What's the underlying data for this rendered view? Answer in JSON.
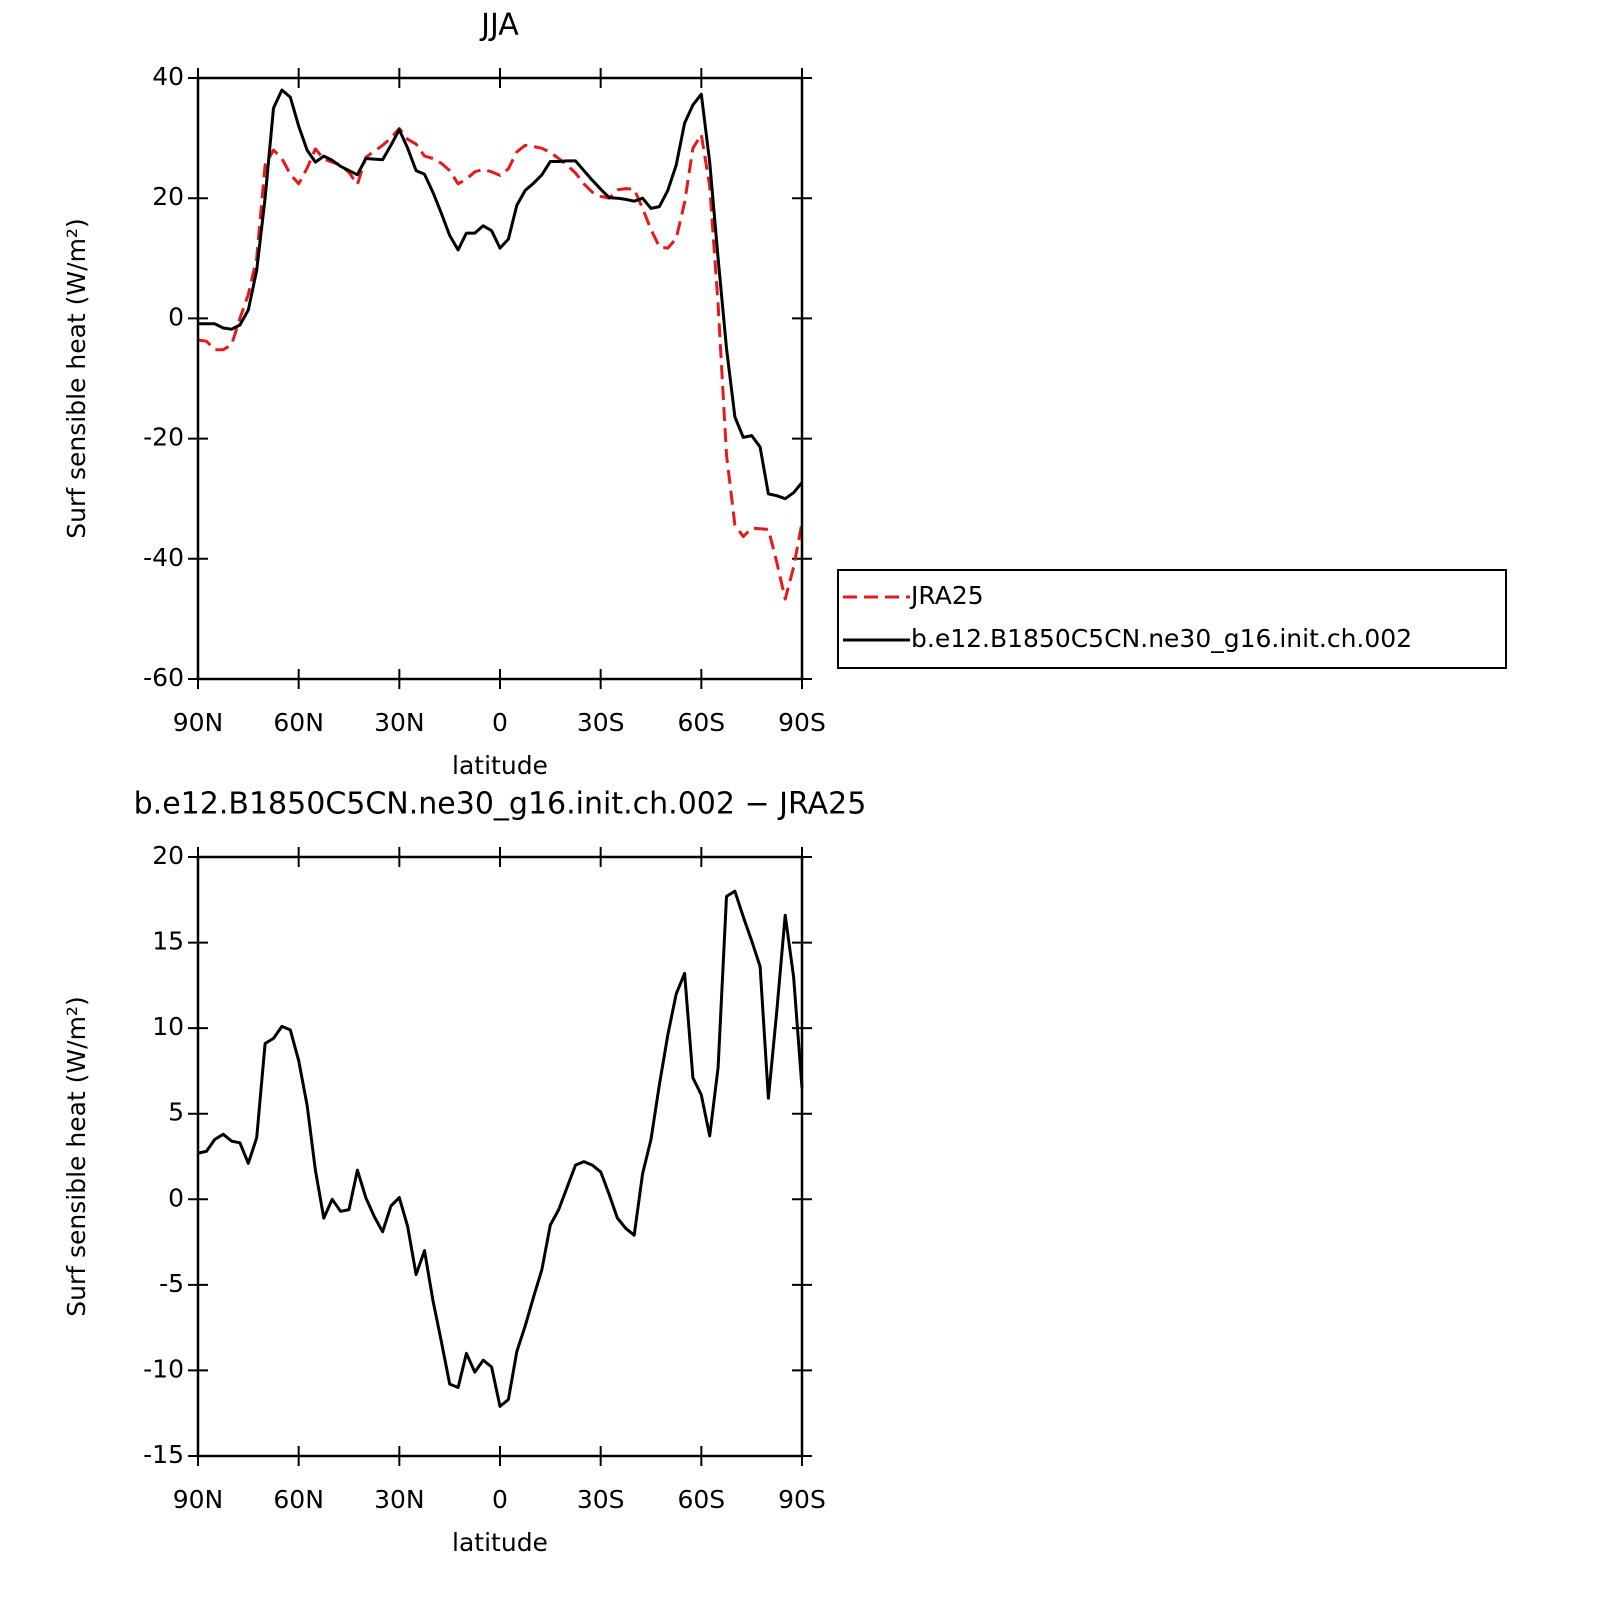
{
  "chart_data": [
    {
      "type": "line",
      "title": "JJA",
      "xlabel": "latitude",
      "ylabel": "Surf sensible heat (W/m²)",
      "x": [
        90,
        87.5,
        85,
        82.5,
        80,
        77.5,
        75,
        72.5,
        70,
        67.5,
        65,
        62.5,
        60,
        57.5,
        55,
        52.5,
        50,
        47.5,
        45,
        42.5,
        40,
        37.5,
        35,
        32.5,
        30,
        27.5,
        25,
        22.5,
        20,
        17.5,
        15,
        12.5,
        10,
        7.5,
        5,
        2.5,
        0,
        -2.5,
        -5,
        -7.5,
        -10,
        -12.5,
        -15,
        -17.5,
        -20,
        -22.5,
        -25,
        -27.5,
        -30,
        -32.5,
        -35,
        -37.5,
        -40,
        -42.5,
        -45,
        -47.5,
        -50,
        -52.5,
        -55,
        -57.5,
        -60,
        -62.5,
        -65,
        -67.5,
        -70,
        -72.5,
        -75,
        -77.5,
        -80,
        -82.5,
        -85,
        -87.5,
        -90
      ],
      "series": [
        {
          "name": "JRA25",
          "color": "#e8191b",
          "linestyle": "dashed",
          "values": [
            -3.6,
            -3.8,
            -5.2,
            -5.2,
            -4.4,
            0,
            4,
            10,
            25.5,
            28,
            26.6,
            24,
            22.4,
            25,
            28.2,
            26.5,
            26,
            25.5,
            24.3,
            22.3,
            26.8,
            27.8,
            28.8,
            30,
            31.6,
            29.8,
            29,
            27,
            26.6,
            25.8,
            24.6,
            22.4,
            23.2,
            24.4,
            24.8,
            24.4,
            23.8,
            24.9,
            27.7,
            28.8,
            28.6,
            28.3,
            27.6,
            26.6,
            25.5,
            24.2,
            22.4,
            21,
            20.3,
            20,
            21.4,
            21.6,
            21.5,
            18.3,
            14.8,
            11.9,
            11.7,
            13.3,
            19.3,
            28.3,
            30.6,
            22,
            2.3,
            -22.7,
            -34.4,
            -36.3,
            -34.9,
            -35,
            -35.1,
            -40.6,
            -46.7,
            -41.4,
            -34
          ]
        },
        {
          "name": "b.e12.B1850C5CN.ne30_g16.init.ch.002",
          "color": "#000000",
          "linestyle": "solid",
          "values": [
            -0.9,
            -0.9,
            -0.9,
            -1.6,
            -1.8,
            -1.1,
            1.4,
            8,
            20,
            35,
            38,
            36.8,
            32,
            28,
            26,
            27,
            26.3,
            25.3,
            24.6,
            23.9,
            26.6,
            26.5,
            26.4,
            28.8,
            31.4,
            28.3,
            24.6,
            24,
            21,
            17.5,
            13.8,
            11.4,
            14.2,
            14.2,
            15.4,
            14.6,
            11.7,
            13.2,
            18.8,
            21.3,
            22.5,
            23.9,
            26.1,
            26.1,
            26.2,
            26.2,
            24.6,
            23,
            21.5,
            20.1,
            20,
            19.8,
            19.5,
            20,
            18.3,
            18.6,
            21.3,
            25.5,
            32.5,
            35.5,
            37.3,
            26,
            10,
            -5,
            -16.4,
            -19.8,
            -19.5,
            -21.4,
            -29.2,
            -29.5,
            -30,
            -29,
            -27.3
          ]
        }
      ],
      "xlim": [
        90,
        -90
      ],
      "xticks": [
        {
          "value": 90,
          "label": "90N"
        },
        {
          "value": 60,
          "label": "60N"
        },
        {
          "value": 30,
          "label": "30N"
        },
        0,
        {
          "value": -30,
          "label": "30S"
        },
        {
          "value": -60,
          "label": "60S"
        },
        {
          "value": -90,
          "label": "90S"
        }
      ],
      "ylim": [
        -60,
        40
      ],
      "yticks": [
        -60,
        -40,
        -20,
        0,
        20,
        40
      ],
      "legend": "right"
    },
    {
      "type": "line",
      "title": "b.e12.B1850C5CN.ne30_g16.init.ch.002 − JRA25",
      "xlabel": "latitude",
      "ylabel": "Surf sensible heat (W/m²)",
      "x": [
        90,
        87.5,
        85,
        82.5,
        80,
        77.5,
        75,
        72.5,
        70,
        67.5,
        65,
        62.5,
        60,
        57.5,
        55,
        52.5,
        50,
        47.5,
        45,
        42.5,
        40,
        37.5,
        35,
        32.5,
        30,
        27.5,
        25,
        22.5,
        20,
        17.5,
        15,
        12.5,
        10,
        7.5,
        5,
        2.5,
        0,
        -2.5,
        -5,
        -7.5,
        -10,
        -12.5,
        -15,
        -17.5,
        -20,
        -22.5,
        -25,
        -27.5,
        -30,
        -32.5,
        -35,
        -37.5,
        -40,
        -42.5,
        -45,
        -47.5,
        -50,
        -52.5,
        -55,
        -57.5,
        -60,
        -62.5,
        -65,
        -67.5,
        -70,
        -72.5,
        -75,
        -77.5,
        -80,
        -82.5,
        -85,
        -87.5,
        -90
      ],
      "values": [
        2.7,
        2.8,
        3.5,
        3.8,
        3.4,
        3.3,
        2.1,
        3.6,
        9.1,
        9.4,
        10.1,
        9.9,
        8.1,
        5.5,
        1.7,
        -1.1,
        0,
        -0.7,
        -0.6,
        1.7,
        0.1,
        -1,
        -1.9,
        -0.4,
        0.1,
        -1.6,
        -4.4,
        -3,
        -5.9,
        -8.3,
        -10.8,
        -11,
        -9,
        -10.1,
        -9.4,
        -9.8,
        -12.1,
        -11.7,
        -8.9,
        -7.4,
        -5.7,
        -4.1,
        -1.5,
        -0.6,
        0.7,
        2,
        2.2,
        2,
        1.6,
        0.3,
        -1.1,
        -1.7,
        -2.1,
        1.5,
        3.5,
        6.7,
        9.6,
        12,
        13.2,
        7.1,
        6.1,
        3.7,
        7.7,
        17.7,
        18,
        16.5,
        15.1,
        13.6,
        5.9,
        11,
        16.6,
        13,
        6.5
      ],
      "color": "#000000",
      "xlim": [
        90,
        -90
      ],
      "xticks": [
        {
          "value": 90,
          "label": "90N"
        },
        {
          "value": 60,
          "label": "60N"
        },
        {
          "value": 30,
          "label": "30N"
        },
        0,
        {
          "value": -30,
          "label": "30S"
        },
        {
          "value": -60,
          "label": "60S"
        },
        {
          "value": -90,
          "label": "90S"
        }
      ],
      "ylim": [
        -15,
        20
      ],
      "yticks": [
        -15,
        -10,
        -5,
        0,
        5,
        10,
        15,
        20
      ]
    }
  ]
}
